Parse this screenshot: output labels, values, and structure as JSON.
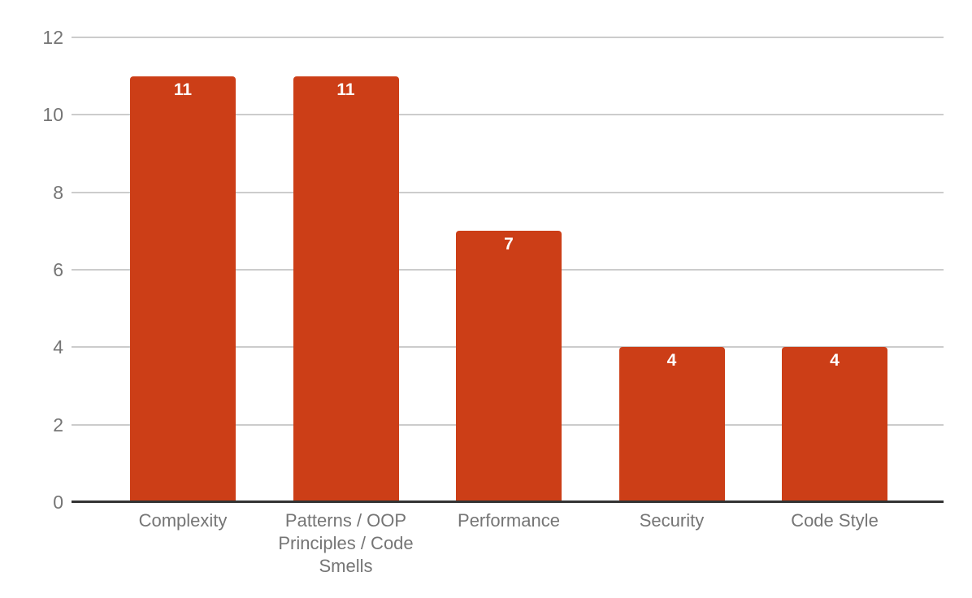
{
  "chart_data": {
    "type": "bar",
    "title": "",
    "xlabel": "",
    "ylabel": "",
    "categories": [
      "Complexity",
      "Patterns / OOP Principles / Code Smells",
      "Performance",
      "Security",
      "Code Style"
    ],
    "values": [
      11,
      11,
      7,
      4,
      4
    ],
    "bar_labels": [
      "11",
      "11",
      "7",
      "4",
      "4"
    ],
    "ylim": [
      0,
      12
    ],
    "yticks": [
      0,
      2,
      4,
      6,
      8,
      10,
      12
    ],
    "grid": true,
    "legend": "none",
    "colors": {
      "bar": "#cc3e17",
      "gridline": "#cccccc",
      "axis_line": "#333333",
      "tick_label": "#757575",
      "value_label": "#ffffff",
      "background": "#ffffff"
    }
  }
}
